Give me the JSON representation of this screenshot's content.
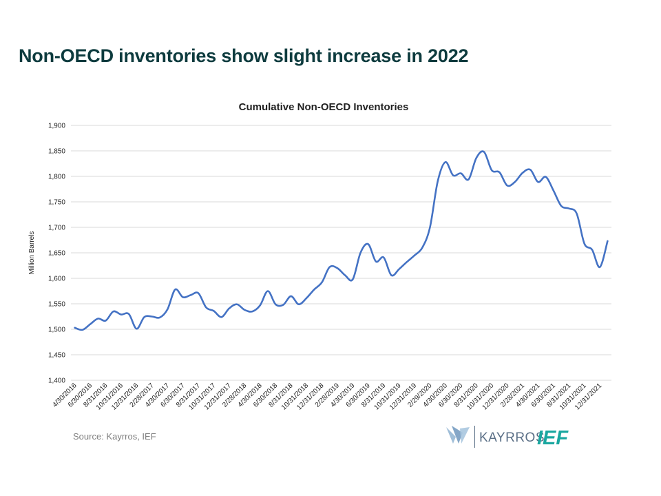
{
  "slide": {
    "title": "Non-OECD inventories show slight increase in 2022",
    "source": "Source: Kayrros, IEF"
  },
  "logos": {
    "kayrros": "KAYRROS",
    "ief": "IEF",
    "colors": {
      "kayrros_mark": "#8fb3d1",
      "kayrros_text": "#5a6f86",
      "ief": "#1aa7a0"
    }
  },
  "chart_data": {
    "type": "line",
    "title": "Cumulative Non-OECD Inventories",
    "xlabel": "",
    "ylabel": "Million Barrels",
    "ylim": [
      1400,
      1900
    ],
    "yticks": [
      1400,
      1450,
      1500,
      1550,
      1600,
      1650,
      1700,
      1750,
      1800,
      1850,
      1900
    ],
    "ytick_labels": [
      "1,400",
      "1,450",
      "1,500",
      "1,550",
      "1,600",
      "1,650",
      "1,700",
      "1,750",
      "1,800",
      "1,850",
      "1,900"
    ],
    "grid": true,
    "legend": "none",
    "line_color": "#4472c4",
    "x": [
      "4/30/2016",
      "5/31/2016",
      "6/30/2016",
      "7/31/2016",
      "8/31/2016",
      "9/30/2016",
      "10/31/2016",
      "11/30/2016",
      "12/31/2016",
      "1/31/2017",
      "2/28/2017",
      "3/31/2017",
      "4/30/2017",
      "5/31/2017",
      "6/30/2017",
      "7/31/2017",
      "8/31/2017",
      "9/30/2017",
      "10/31/2017",
      "11/30/2017",
      "12/31/2017",
      "1/31/2018",
      "2/28/2018",
      "3/31/2018",
      "4/30/2018",
      "5/31/2018",
      "6/30/2018",
      "7/31/2018",
      "8/31/2018",
      "9/30/2018",
      "10/31/2018",
      "11/30/2018",
      "12/31/2018",
      "1/31/2019",
      "2/28/2019",
      "3/31/2019",
      "4/30/2019",
      "5/31/2019",
      "6/30/2019",
      "7/31/2019",
      "8/31/2019",
      "9/30/2019",
      "10/31/2019",
      "11/30/2019",
      "12/31/2019",
      "1/31/2020",
      "2/29/2020",
      "3/31/2020",
      "4/30/2020",
      "5/31/2020",
      "6/30/2020",
      "7/31/2020",
      "8/31/2020",
      "9/30/2020",
      "10/31/2020",
      "11/30/2020",
      "12/31/2020",
      "1/31/2021",
      "2/28/2021",
      "3/31/2021",
      "4/30/2021",
      "5/31/2021",
      "6/30/2021",
      "7/31/2021",
      "8/31/2021",
      "9/30/2021",
      "10/31/2021",
      "11/30/2021",
      "12/31/2021",
      "1/31/2022"
    ],
    "x_tick_labels": [
      "4/30/2016",
      "6/30/2016",
      "8/31/2016",
      "10/31/2016",
      "12/31/2016",
      "2/28/2017",
      "4/30/2017",
      "6/30/2017",
      "8/31/2017",
      "10/31/2017",
      "12/31/2017",
      "2/28/2018",
      "4/30/2018",
      "6/30/2018",
      "8/31/2018",
      "10/31/2018",
      "12/31/2018",
      "2/28/2019",
      "4/30/2019",
      "6/30/2019",
      "8/31/2019",
      "10/31/2019",
      "12/31/2019",
      "2/29/2020",
      "4/30/2020",
      "6/30/2020",
      "8/31/2020",
      "10/31/2020",
      "12/31/2020",
      "2/28/2021",
      "4/30/2021",
      "6/30/2021",
      "8/31/2021",
      "10/31/2021",
      "12/31/2021"
    ],
    "values": [
      1503,
      1499,
      1510,
      1521,
      1517,
      1535,
      1529,
      1530,
      1501,
      1524,
      1525,
      1523,
      1539,
      1578,
      1563,
      1567,
      1571,
      1543,
      1536,
      1524,
      1541,
      1549,
      1538,
      1535,
      1547,
      1575,
      1549,
      1548,
      1565,
      1549,
      1561,
      1578,
      1592,
      1622,
      1620,
      1606,
      1598,
      1650,
      1667,
      1633,
      1641,
      1606,
      1618,
      1632,
      1645,
      1660,
      1700,
      1790,
      1828,
      1802,
      1806,
      1794,
      1836,
      1848,
      1812,
      1808,
      1782,
      1789,
      1807,
      1813,
      1789,
      1799,
      1772,
      1742,
      1737,
      1727,
      1668,
      1656,
      1622,
      1673
    ]
  }
}
